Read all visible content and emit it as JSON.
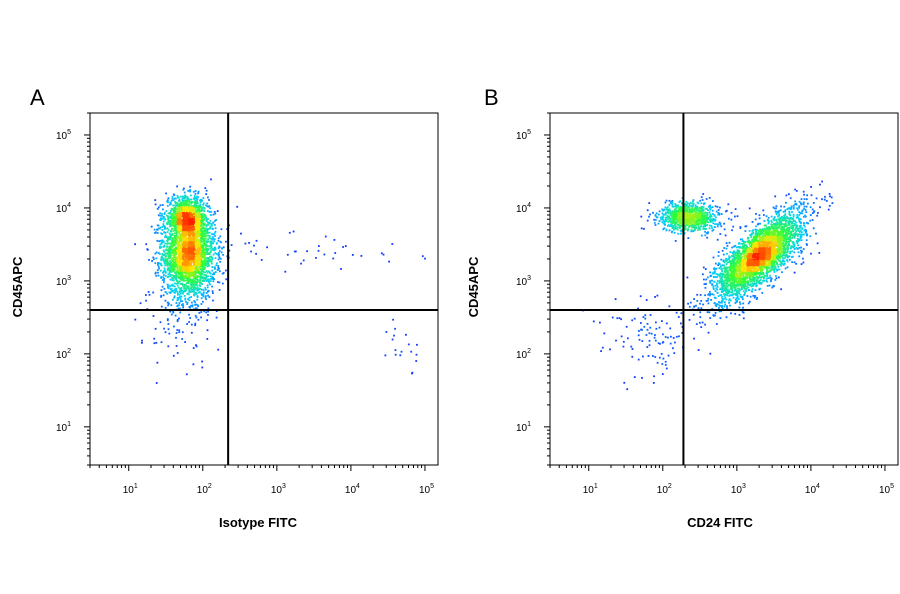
{
  "chart_data": [
    {
      "type": "scatter",
      "panel_label": "A",
      "xlabel": "Isotype FITC",
      "ylabel": "CD45APC",
      "x_scale": "log",
      "y_scale": "log",
      "xlim": [
        3,
        150000
      ],
      "ylim": [
        3,
        200000
      ],
      "x_ticks": [
        "10^1",
        "10^2",
        "10^3",
        "10^4",
        "10^5"
      ],
      "y_ticks": [
        "10^1",
        "10^2",
        "10^3",
        "10^4",
        "10^5"
      ],
      "quadrant_gate": {
        "x": 220,
        "y": 400
      },
      "grid": false,
      "legend": "none",
      "populations": [
        {
          "x_center": 65,
          "y_center": 2300,
          "x_spread_decades": 0.18,
          "y_spread_decades": 0.3,
          "events": 2600
        },
        {
          "x_center": 60,
          "y_center": 7500,
          "x_spread_decades": 0.14,
          "y_spread_decades": 0.14,
          "events": 900
        },
        {
          "x_center": 50,
          "y_center": 250,
          "x_spread_decades": 0.25,
          "y_spread_decades": 0.3,
          "events": 80
        },
        {
          "x_center": 3000,
          "y_center": 2500,
          "x_spread_decades": 0.9,
          "y_spread_decades": 0.15,
          "events": 45
        },
        {
          "x_center": 50000,
          "y_center": 120,
          "x_spread_decades": 0.1,
          "y_spread_decades": 0.2,
          "events": 18
        }
      ]
    },
    {
      "type": "scatter",
      "panel_label": "B",
      "xlabel": "CD24 FITC",
      "ylabel": "CD45APC",
      "x_scale": "log",
      "y_scale": "log",
      "xlim": [
        3,
        150000
      ],
      "ylim": [
        3,
        200000
      ],
      "x_ticks": [
        "10^1",
        "10^2",
        "10^3",
        "10^4",
        "10^5"
      ],
      "y_ticks": [
        "10^1",
        "10^2",
        "10^3",
        "10^4",
        "10^5"
      ],
      "quadrant_gate": {
        "x": 190,
        "y": 400
      },
      "grid": false,
      "legend": "none",
      "populations": [
        {
          "x_center": 2000,
          "y_center": 2200,
          "x_spread_decades": 0.3,
          "y_spread_decades": 0.13,
          "diagonal_correlation": 0.75,
          "events": 3200
        },
        {
          "x_center": 230,
          "y_center": 7500,
          "x_spread_decades": 0.2,
          "y_spread_decades": 0.1,
          "events": 900
        },
        {
          "x_center": 70,
          "y_center": 180,
          "x_spread_decades": 0.35,
          "y_spread_decades": 0.3,
          "events": 110
        }
      ]
    }
  ],
  "page": {
    "panels": [
      {
        "letter": "A",
        "xlabel": "Isotype FITC",
        "ylabel": "CD45APC"
      },
      {
        "letter": "B",
        "xlabel": "CD24 FITC",
        "ylabel": "CD45APC"
      }
    ]
  },
  "colors": {
    "density_low": "#1a1aff",
    "density_mid": "#00d0ff",
    "density_high": "#33ff33",
    "density_peak": "#ff2000",
    "gate_line": "#000000",
    "frame": "#000000"
  }
}
